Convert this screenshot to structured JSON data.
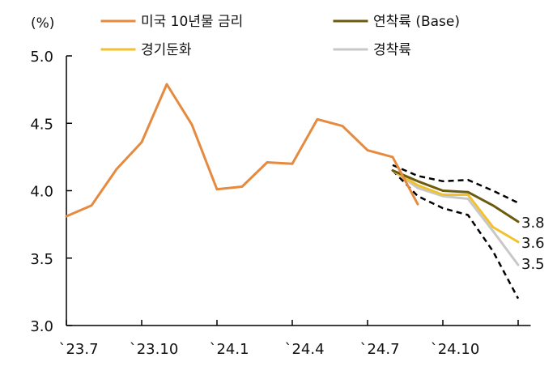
{
  "chart_data": {
    "type": "line",
    "unit": "(%)",
    "ylim": [
      3.0,
      5.0
    ],
    "yticks": [
      "5.0",
      "4.5",
      "4.0",
      "3.5",
      "3.0"
    ],
    "xtick_labels": [
      "`23.7",
      "`23.10",
      "`24.1",
      "`24.4",
      "`24.7",
      "`24.10"
    ],
    "x_start": "2023-07",
    "series": [
      {
        "name": "미국 10년물 금리",
        "color": "#E58A3F",
        "points": [
          [
            "2023-07",
            3.81
          ],
          [
            "2023-08",
            3.89
          ],
          [
            "2023-09",
            4.16
          ],
          [
            "2023-10",
            4.36
          ],
          [
            "2023-11",
            4.79
          ],
          [
            "2023-12",
            4.49
          ],
          [
            "2024-01",
            4.01
          ],
          [
            "2024-02",
            4.03
          ],
          [
            "2024-03",
            4.21
          ],
          [
            "2024-04",
            4.2
          ],
          [
            "2024-05",
            4.53
          ],
          [
            "2024-06",
            4.48
          ],
          [
            "2024-07",
            4.3
          ],
          [
            "2024-08",
            4.25
          ],
          [
            "2024-09",
            3.9
          ]
        ]
      },
      {
        "name": "연착륙 (Base)",
        "color": "#6B5B0E",
        "points": [
          [
            "2024-08",
            4.15
          ],
          [
            "2024-09",
            4.07
          ],
          [
            "2024-10",
            4.0
          ],
          [
            "2024-11",
            3.99
          ],
          [
            "2024-12",
            3.89
          ],
          [
            "2025-01",
            3.77
          ]
        ]
      },
      {
        "name": "경기둔화",
        "color": "#F2C12E",
        "points": [
          [
            "2024-08",
            4.15
          ],
          [
            "2024-09",
            4.04
          ],
          [
            "2024-10",
            3.97
          ],
          [
            "2024-11",
            3.97
          ],
          [
            "2024-12",
            3.73
          ],
          [
            "2025-01",
            3.62
          ]
        ]
      },
      {
        "name": "경착륙",
        "color": "#C8C8C8",
        "points": [
          [
            "2024-08",
            4.15
          ],
          [
            "2024-09",
            4.02
          ],
          [
            "2024-10",
            3.96
          ],
          [
            "2024-11",
            3.94
          ],
          [
            "2024-12",
            3.7
          ],
          [
            "2025-01",
            3.45
          ]
        ]
      }
    ],
    "bands": [
      {
        "style": "dashed",
        "color": "#000000",
        "points": [
          [
            "2024-08",
            4.19
          ],
          [
            "2024-09",
            4.11
          ],
          [
            "2024-10",
            4.07
          ],
          [
            "2024-11",
            4.08
          ],
          [
            "2024-12",
            4.0
          ],
          [
            "2025-01",
            3.91
          ]
        ]
      },
      {
        "style": "dashed",
        "color": "#000000",
        "points": [
          [
            "2024-08",
            4.15
          ],
          [
            "2024-09",
            3.96
          ],
          [
            "2024-10",
            3.87
          ],
          [
            "2024-11",
            3.82
          ],
          [
            "2024-12",
            3.55
          ],
          [
            "2025-01",
            3.2
          ]
        ]
      }
    ],
    "end_labels": [
      "3.8",
      "3.6",
      "3.5"
    ],
    "legend": [
      {
        "label": "미국 10년물 금리",
        "color": "#E58A3F"
      },
      {
        "label": "연착륙 (Base)",
        "color": "#6B5B0E"
      },
      {
        "label": "경기둔화",
        "color": "#F2C12E"
      },
      {
        "label": "경착륙",
        "color": "#C8C8C8"
      }
    ],
    "legend_position": "top",
    "grid": false
  }
}
